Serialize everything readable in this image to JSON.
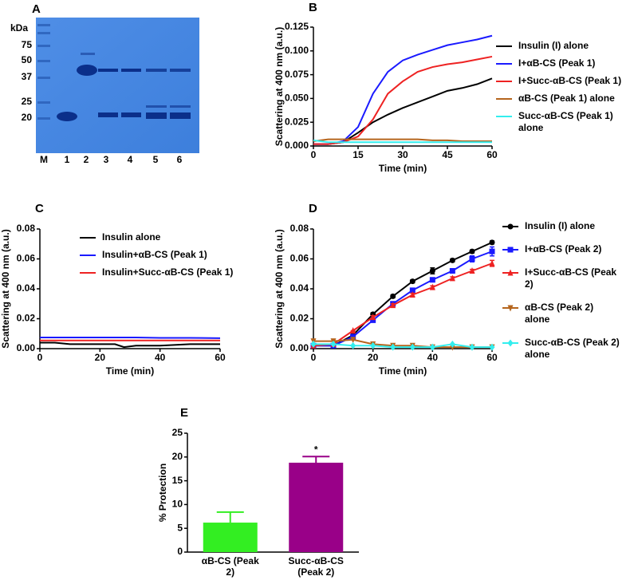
{
  "gel": {
    "panel": "A",
    "unit": "kDa",
    "markers": [
      75,
      50,
      37,
      25,
      20
    ],
    "lanes": [
      "M",
      "1",
      "2",
      "3",
      "4",
      "5",
      "6"
    ]
  },
  "chart_data": [
    {
      "type": "line",
      "panel": "B",
      "xlabel": "Time (min)",
      "ylabel": "Scattering at 400 nm (a.u.)",
      "x": [
        0,
        5,
        10,
        15,
        20,
        25,
        30,
        35,
        40,
        45,
        50,
        55,
        60
      ],
      "xlim": [
        0,
        60
      ],
      "xticks": [
        0,
        15,
        30,
        45,
        60
      ],
      "ylim": [
        0,
        0.125
      ],
      "yticks": [
        {
          "value": 0,
          "label": "0.000"
        },
        {
          "value": 0.025,
          "label": "0.025"
        },
        {
          "value": 0.05,
          "label": "0.050"
        },
        {
          "value": 0.075,
          "label": "0.075"
        },
        {
          "value": 0.1,
          "label": "0.100"
        },
        {
          "value": 0.125,
          "label": "0.125"
        }
      ],
      "series": [
        {
          "name": "Insulin (I) alone",
          "color": "#000000",
          "values": [
            0.002,
            0.002,
            0.004,
            0.014,
            0.025,
            0.033,
            0.04,
            0.046,
            0.052,
            0.058,
            0.061,
            0.065,
            0.071
          ]
        },
        {
          "name": "I+αB-CS (Peak 1)",
          "color": "#1a1aff",
          "values": [
            0.002,
            0.002,
            0.005,
            0.02,
            0.055,
            0.078,
            0.09,
            0.096,
            0.101,
            0.106,
            0.109,
            0.112,
            0.116
          ]
        },
        {
          "name": "I+Succ-αB-CS (Peak 1)",
          "color": "#ee2222",
          "values": [
            0.002,
            0.002,
            0.004,
            0.01,
            0.028,
            0.055,
            0.068,
            0.078,
            0.083,
            0.086,
            0.088,
            0.091,
            0.094
          ]
        },
        {
          "name": "αB-CS (Peak 1) alone",
          "color": "#b5651d",
          "values": [
            0.005,
            0.007,
            0.007,
            0.007,
            0.007,
            0.007,
            0.007,
            0.007,
            0.006,
            0.006,
            0.005,
            0.005,
            0.005
          ]
        },
        {
          "name": "Succ-αB-CS (Peak 1) alone",
          "color": "#33eeee",
          "values": [
            0.006,
            0.004,
            0.004,
            0.004,
            0.004,
            0.004,
            0.004,
            0.004,
            0.004,
            0.004,
            0.004,
            0.004,
            0.004
          ]
        }
      ]
    },
    {
      "type": "line",
      "panel": "C",
      "xlabel": "Time (min)",
      "ylabel": "Scattering at 400 nm (a.u.)",
      "x": [
        0,
        5,
        10,
        15,
        20,
        25,
        28,
        32,
        40,
        50,
        60
      ],
      "xlim": [
        0,
        60
      ],
      "xticks": [
        0,
        20,
        40,
        60
      ],
      "ylim": [
        0,
        0.08
      ],
      "yticks": [
        {
          "value": 0,
          "label": "0.00"
        },
        {
          "value": 0.02,
          "label": "0.02"
        },
        {
          "value": 0.04,
          "label": "0.04"
        },
        {
          "value": 0.06,
          "label": "0.06"
        },
        {
          "value": 0.08,
          "label": "0.08"
        }
      ],
      "series": [
        {
          "name": "Insulin alone",
          "color": "#000000",
          "values": [
            0.004,
            0.004,
            0.003,
            0.003,
            0.003,
            0.003,
            0.001,
            0.002,
            0.002,
            0.003,
            0.003
          ]
        },
        {
          "name": "Insulin+αB-CS (Peak 1)",
          "color": "#1a1aff",
          "values": [
            0.0075,
            0.0075,
            0.0075,
            0.0075,
            0.0075,
            0.0075,
            0.0075,
            0.0075,
            0.0072,
            0.0072,
            0.007
          ]
        },
        {
          "name": "Insulin+Succ-αB-CS (Peak 1)",
          "color": "#ee2222",
          "values": [
            0.0055,
            0.0055,
            0.0055,
            0.0055,
            0.0055,
            0.0055,
            0.0055,
            0.0055,
            0.0055,
            0.0055,
            0.0055
          ]
        }
      ]
    },
    {
      "type": "line",
      "panel": "D",
      "xlabel": "Time (min)",
      "ylabel": "Scattering at 400 nm (a.u.)",
      "x": [
        0,
        6.7,
        13.3,
        20,
        26.7,
        33.3,
        40,
        46.7,
        53.3,
        60
      ],
      "xlim": [
        0,
        60
      ],
      "xticks": [
        0,
        20,
        40,
        60
      ],
      "ylim": [
        0,
        0.08
      ],
      "yticks": [
        {
          "value": 0,
          "label": "0.00"
        },
        {
          "value": 0.02,
          "label": "0.02"
        },
        {
          "value": 0.04,
          "label": "0.04"
        },
        {
          "value": 0.06,
          "label": "0.06"
        },
        {
          "value": 0.08,
          "label": "0.08"
        }
      ],
      "series": [
        {
          "name": "Insulin (I) alone",
          "color": "#000000",
          "marker": "circle",
          "values": [
            0.002,
            0.002,
            0.009,
            0.023,
            0.035,
            0.045,
            0.052,
            0.059,
            0.065,
            0.071
          ],
          "errors": [
            0,
            0,
            0,
            0.001,
            0.001,
            0.001,
            0.002,
            0.001,
            0.001,
            0.001
          ]
        },
        {
          "name": "I+αB-CS (Peak 2)",
          "color": "#1a1aff",
          "marker": "square",
          "values": [
            0.002,
            0.002,
            0.008,
            0.019,
            0.03,
            0.039,
            0.046,
            0.052,
            0.06,
            0.065
          ],
          "errors": [
            0,
            0,
            0,
            0.001,
            0.001,
            0.001,
            0.001,
            0.001,
            0.002,
            0.003
          ]
        },
        {
          "name": "I+Succ-αB-CS (Peak 2)",
          "color": "#ee2222",
          "marker": "triangle",
          "values": [
            0.002,
            0.003,
            0.012,
            0.021,
            0.029,
            0.036,
            0.041,
            0.047,
            0.052,
            0.057
          ],
          "errors": [
            0,
            0,
            0,
            0.001,
            0.001,
            0.001,
            0.001,
            0.001,
            0.001,
            0.002
          ]
        },
        {
          "name": "αB-CS (Peak 2) alone",
          "color": "#b5651d",
          "marker": "triangle-down",
          "values": [
            0.005,
            0.005,
            0.006,
            0.003,
            0.002,
            0.002,
            0.001,
            0.001,
            0.001,
            0.001
          ]
        },
        {
          "name": "Succ-αB-CS (Peak 2) alone",
          "color": "#33eeee",
          "marker": "diamond",
          "values": [
            0.003,
            0.003,
            0.002,
            0.002,
            0.001,
            0.001,
            0.001,
            0.003,
            0.001,
            0.001
          ]
        }
      ]
    },
    {
      "type": "bar",
      "panel": "E",
      "ylabel": "% Protection",
      "categories": [
        "αB-CS (Peak 2)",
        "Succ-αB-CS (Peak 2)"
      ],
      "values": [
        6.2,
        18.8
      ],
      "errors": [
        2.2,
        1.3
      ],
      "colors": [
        "#33ee22",
        "#990088"
      ],
      "annotation": "*",
      "ylim": [
        0,
        25
      ],
      "yticks": [
        0,
        5,
        10,
        15,
        20,
        25
      ]
    }
  ]
}
